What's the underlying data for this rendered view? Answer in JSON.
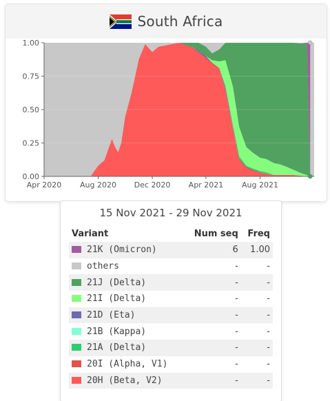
{
  "header": {
    "country": "South Africa",
    "flag_colors": {
      "red": "#e03c31",
      "blue": "#001489",
      "green": "#007749",
      "yellow": "#ffb81c",
      "black": "#000000",
      "white": "#ffffff"
    }
  },
  "chart_data": {
    "type": "area",
    "stacked": true,
    "x_unit": "date",
    "ylim": [
      0,
      1
    ],
    "yticks": [
      "0.00",
      "0.25",
      "0.50",
      "0.75",
      "1.00"
    ],
    "xticks": [
      "Apr 2020",
      "Aug 2020",
      "Dec 2020",
      "Apr 2021",
      "Aug 2021"
    ],
    "xlim": [
      "2020-04-01",
      "2021-12-01"
    ],
    "x": [
      "2020-04-01",
      "2020-07-15",
      "2020-08-01",
      "2020-08-15",
      "2020-09-01",
      "2020-09-08",
      "2020-09-15",
      "2020-09-22",
      "2020-10-01",
      "2020-10-15",
      "2020-11-01",
      "2020-11-15",
      "2020-12-01",
      "2020-12-15",
      "2021-01-01",
      "2021-01-15",
      "2021-02-01",
      "2021-02-15",
      "2021-03-01",
      "2021-03-15",
      "2021-04-01",
      "2021-04-15",
      "2021-05-01",
      "2021-05-15",
      "2021-06-01",
      "2021-06-15",
      "2021-07-01",
      "2021-07-15",
      "2021-08-01",
      "2021-08-15",
      "2021-09-01",
      "2021-09-15",
      "2021-10-01",
      "2021-10-15",
      "2021-11-01",
      "2021-11-15",
      "2021-11-22"
    ],
    "series": [
      {
        "name": "20H (Beta, V2)",
        "color": "#ff5a5a",
        "values": [
          0,
          0,
          0.08,
          0.12,
          0.28,
          0.22,
          0.18,
          0.25,
          0.45,
          0.62,
          0.88,
          0.99,
          0.93,
          0.97,
          0.98,
          0.99,
          1.0,
          0.98,
          0.97,
          0.93,
          0.88,
          0.84,
          0.8,
          0.65,
          0.35,
          0.12,
          0.06,
          0.04,
          0.03,
          0.02,
          0.01,
          0.01,
          0.01,
          0.01,
          0.005,
          0,
          0
        ]
      },
      {
        "name": "20I (Alpha, V1)",
        "color": "#e0534b",
        "values": [
          0,
          0,
          0,
          0,
          0,
          0,
          0,
          0,
          0,
          0,
          0,
          0,
          0,
          0,
          0,
          0,
          0,
          0,
          0,
          0,
          0.01,
          0.01,
          0.01,
          0.01,
          0.01,
          0.01,
          0.01,
          0.01,
          0,
          0,
          0,
          0,
          0,
          0,
          0,
          0,
          0
        ]
      },
      {
        "name": "21A (Delta)",
        "color": "#2ecc71",
        "values": [
          0,
          0,
          0,
          0,
          0,
          0,
          0,
          0,
          0,
          0,
          0,
          0,
          0,
          0,
          0,
          0,
          0,
          0,
          0,
          0,
          0,
          0,
          0,
          0.02,
          0.02,
          0.02,
          0.01,
          0.01,
          0.01,
          0.01,
          0,
          0,
          0,
          0,
          0,
          0,
          0
        ]
      },
      {
        "name": "21B (Kappa)",
        "color": "#80ffd4",
        "values": [
          0,
          0,
          0,
          0,
          0,
          0,
          0,
          0,
          0,
          0,
          0,
          0,
          0,
          0,
          0,
          0,
          0,
          0,
          0,
          0,
          0,
          0,
          0,
          0.01,
          0.01,
          0,
          0,
          0,
          0,
          0,
          0,
          0,
          0,
          0,
          0,
          0,
          0
        ]
      },
      {
        "name": "21D (Eta)",
        "color": "#6e6ab1",
        "values": [
          0,
          0,
          0,
          0,
          0,
          0,
          0,
          0,
          0,
          0,
          0,
          0,
          0,
          0,
          0,
          0,
          0,
          0,
          0,
          0.01,
          0.01,
          0,
          0,
          0,
          0,
          0,
          0,
          0,
          0,
          0,
          0,
          0,
          0,
          0,
          0,
          0,
          0
        ]
      },
      {
        "name": "21I (Delta)",
        "color": "#86fc7f",
        "values": [
          0,
          0,
          0,
          0,
          0,
          0,
          0,
          0,
          0,
          0,
          0,
          0,
          0,
          0,
          0,
          0,
          0,
          0,
          0,
          0,
          0,
          0.02,
          0.05,
          0.18,
          0.28,
          0.22,
          0.14,
          0.12,
          0.1,
          0.1,
          0.09,
          0.08,
          0.06,
          0.04,
          0.02,
          0.01,
          0
        ]
      },
      {
        "name": "21J (Delta)",
        "color": "#51a160",
        "values": [
          0,
          0,
          0,
          0,
          0,
          0,
          0,
          0,
          0,
          0,
          0,
          0,
          0,
          0,
          0,
          0,
          0,
          0.02,
          0.03,
          0.06,
          0.07,
          0.05,
          0.09,
          0.14,
          0.34,
          0.64,
          0.79,
          0.83,
          0.86,
          0.87,
          0.9,
          0.91,
          0.93,
          0.95,
          0.97,
          0.98,
          0
        ]
      },
      {
        "name": "21K (Omicron)",
        "color": "#a15c9f",
        "values": [
          0,
          0,
          0,
          0,
          0,
          0,
          0,
          0,
          0,
          0,
          0,
          0,
          0,
          0,
          0,
          0,
          0,
          0,
          0,
          0,
          0,
          0,
          0,
          0,
          0,
          0,
          0,
          0,
          0,
          0,
          0,
          0,
          0,
          0,
          0,
          0.02,
          1.0
        ]
      }
    ],
    "others": {
      "name": "others",
      "color": "#c8c8c8"
    }
  },
  "tooltip": {
    "date_range": "15 Nov 2021 - 29 Nov 2021",
    "headers": [
      "Variant",
      "Num seq",
      "Freq"
    ],
    "rows": [
      {
        "variant": "21K (Omicron)",
        "color": "#a15c9f",
        "num_seq": "6",
        "freq": "1.00"
      },
      {
        "variant": "others",
        "color": "#c8c8c8",
        "num_seq": "-",
        "freq": "-"
      },
      {
        "variant": "21J (Delta)",
        "color": "#51a160",
        "num_seq": "-",
        "freq": "-"
      },
      {
        "variant": "21I (Delta)",
        "color": "#86fc7f",
        "num_seq": "-",
        "freq": "-"
      },
      {
        "variant": "21D (Eta)",
        "color": "#6e6ab1",
        "num_seq": "-",
        "freq": "-"
      },
      {
        "variant": "21B (Kappa)",
        "color": "#80ffd4",
        "num_seq": "-",
        "freq": "-"
      },
      {
        "variant": "21A (Delta)",
        "color": "#2ecc71",
        "num_seq": "-",
        "freq": "-"
      },
      {
        "variant": "20I (Alpha, V1)",
        "color": "#e0534b",
        "num_seq": "-",
        "freq": "-"
      },
      {
        "variant": "20H (Beta, V2)",
        "color": "#ff5a5a",
        "num_seq": "-",
        "freq": "-"
      }
    ]
  }
}
